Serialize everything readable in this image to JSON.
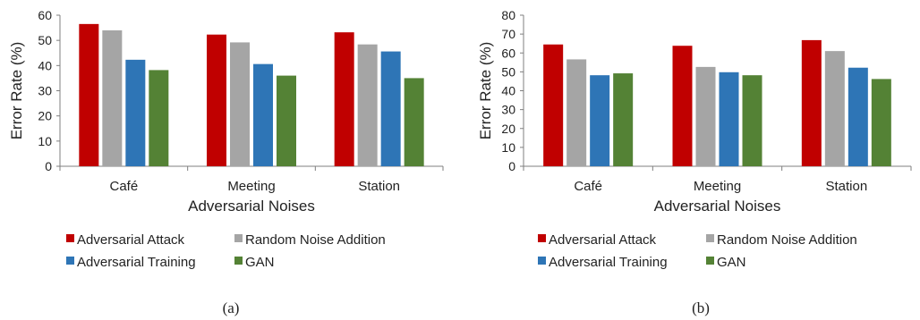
{
  "chart_data": [
    {
      "type": "bar",
      "title": "",
      "xlabel": "Adversarial Noises",
      "ylabel": "Error Rate (%)",
      "ylim": [
        0,
        60
      ],
      "yticks": [
        0,
        10,
        20,
        30,
        40,
        50,
        60
      ],
      "categories": [
        "Café",
        "Meeting",
        "Station"
      ],
      "series": [
        {
          "name": "Adversarial Attack",
          "color": "#c00000",
          "values": [
            56.5,
            52.3,
            53.2
          ]
        },
        {
          "name": "Random Noise Addition",
          "color": "#a5a5a5",
          "values": [
            54.0,
            49.2,
            48.4
          ]
        },
        {
          "name": "Adversarial Training",
          "color": "#2e75b6",
          "values": [
            42.3,
            40.6,
            45.6
          ]
        },
        {
          "name": "GAN",
          "color": "#548235",
          "values": [
            38.2,
            36.0,
            35.0
          ]
        }
      ],
      "grid": false,
      "legend": "bottom",
      "caption": "(a)"
    },
    {
      "type": "bar",
      "title": "",
      "xlabel": "Adversarial Noises",
      "ylabel": "Error Rate (%)",
      "ylim": [
        0,
        80
      ],
      "yticks": [
        0,
        10,
        20,
        30,
        40,
        50,
        60,
        70,
        80
      ],
      "categories": [
        "Café",
        "Meeting",
        "Station"
      ],
      "series": [
        {
          "name": "Adversarial Attack",
          "color": "#c00000",
          "values": [
            64.5,
            63.8,
            66.8
          ]
        },
        {
          "name": "Random Noise Addition",
          "color": "#a5a5a5",
          "values": [
            56.6,
            52.6,
            61.0
          ]
        },
        {
          "name": "Adversarial Training",
          "color": "#2e75b6",
          "values": [
            48.2,
            49.8,
            52.2
          ]
        },
        {
          "name": "GAN",
          "color": "#548235",
          "values": [
            49.2,
            48.2,
            46.2
          ]
        }
      ],
      "grid": false,
      "legend": "bottom",
      "caption": "(b)"
    }
  ]
}
